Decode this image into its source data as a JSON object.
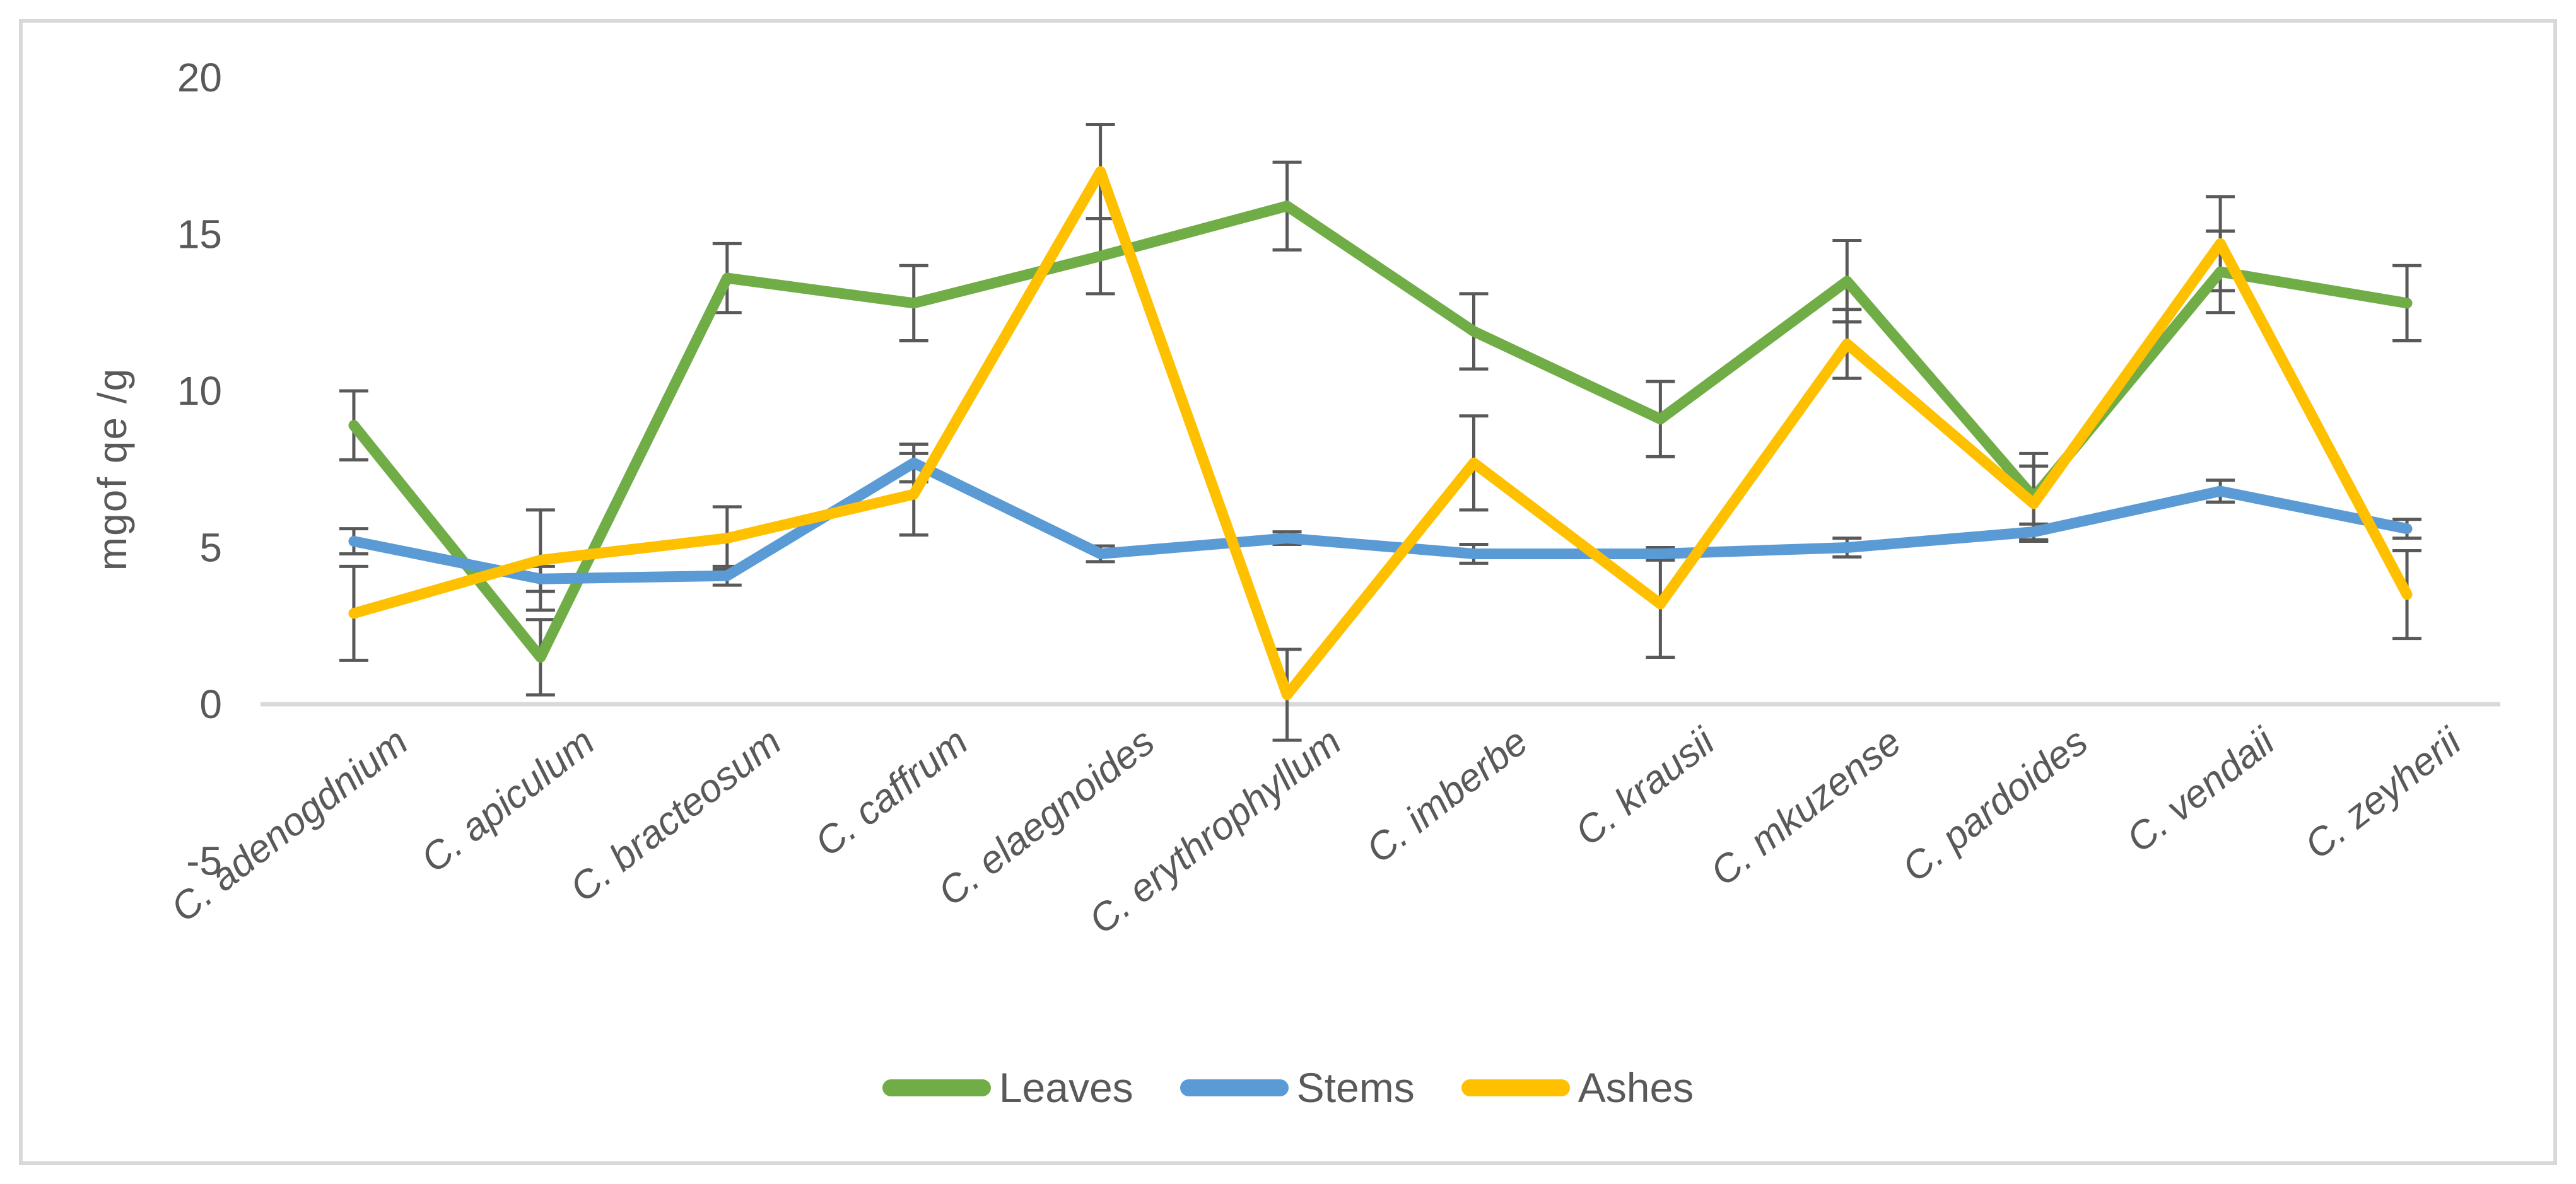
{
  "chart_data": {
    "type": "line",
    "title": "",
    "xlabel": "",
    "ylabel": "mgof qe /g",
    "ylim": [
      -5,
      20
    ],
    "yticks": [
      20,
      15,
      10,
      5,
      0,
      -5
    ],
    "grid": false,
    "legend_position": "bottom",
    "error_bars": true,
    "categories": [
      "C. adenogdnium",
      "C. apiculum",
      "C. bracteosum",
      "C. caffrum",
      "C. elaegnoides",
      "C. erythrophyllum",
      "C. imberbe",
      "C. krausii",
      "C. mkuzense",
      "C. pardoides",
      "C. vendaii",
      "C. zeyherii"
    ],
    "series": [
      {
        "name": "Leaves",
        "color": "#70AD47",
        "values": [
          8.9,
          1.5,
          13.6,
          12.8,
          14.3,
          15.9,
          11.9,
          9.1,
          13.5,
          6.6,
          13.8,
          12.8
        ],
        "errors": [
          1.1,
          1.2,
          1.1,
          1.2,
          1.2,
          1.4,
          1.2,
          1.2,
          1.3,
          1.4,
          1.3,
          1.2
        ]
      },
      {
        "name": "Stems",
        "color": "#5B9BD5",
        "values": [
          5.2,
          4.0,
          4.1,
          7.7,
          4.8,
          5.3,
          4.8,
          4.8,
          5.0,
          5.5,
          6.8,
          5.6
        ],
        "errors": [
          0.4,
          0.4,
          0.3,
          0.6,
          0.25,
          0.2,
          0.3,
          0.2,
          0.3,
          0.25,
          0.35,
          0.3
        ]
      },
      {
        "name": "Ashes",
        "color": "#FFC000",
        "values": [
          2.9,
          4.6,
          5.3,
          6.7,
          17.0,
          0.3,
          7.7,
          3.2,
          11.5,
          6.4,
          14.7,
          3.5
        ],
        "errors": [
          1.5,
          1.6,
          1.0,
          1.3,
          1.5,
          1.45,
          1.5,
          1.7,
          1.1,
          1.2,
          1.5,
          1.4
        ]
      }
    ],
    "colors": {
      "text": "#595959",
      "error_bar": "#595959",
      "axis_line": "#D9D9D9",
      "border": "#D9D9D9"
    }
  }
}
